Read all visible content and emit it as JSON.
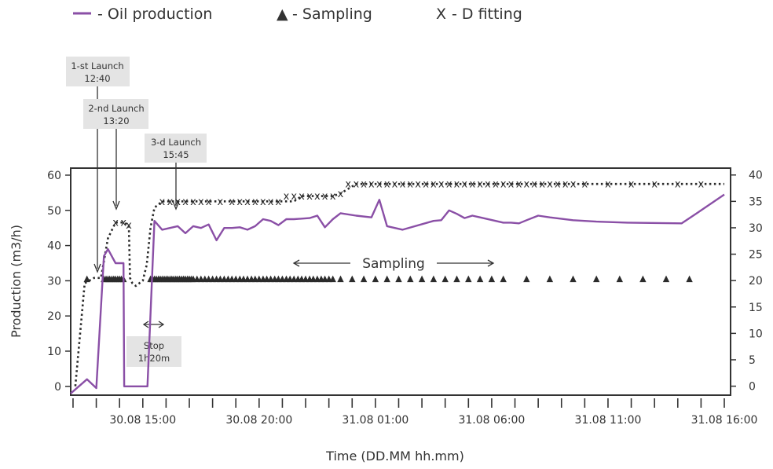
{
  "chart_data": {
    "type": "line",
    "legend": [
      {
        "symbol": "line",
        "label": "- Oil production",
        "color": "#8a4fa6"
      },
      {
        "symbol": "▲",
        "label": "- Sampling",
        "color": "#2b2b2b"
      },
      {
        "symbol": "X",
        "label": "- D fitting",
        "color": "#2b2b2b"
      }
    ],
    "xlabel": "Time (DD.MM hh.mm)",
    "ylabel": "Production (m3/h)",
    "x_tick_labels": [
      {
        "label": "30.08 15:00",
        "x": 15
      },
      {
        "label": "30.08 20:00",
        "x": 20
      },
      {
        "label": "31.08 01:00",
        "x": 25
      },
      {
        "label": "31.08 06:00",
        "x": 30
      },
      {
        "label": "31.08 11:00",
        "x": 35
      },
      {
        "label": "31.08 16:00",
        "x": 40
      }
    ],
    "xlim": [
      11.9,
      40
    ],
    "ylim": [
      -2.5,
      62
    ],
    "y_ticks": [
      0,
      10,
      20,
      30,
      40,
      50,
      60
    ],
    "y2lim": [
      -1.7,
      41.3
    ],
    "y2_ticks": [
      0,
      5,
      10,
      15,
      20,
      25,
      30,
      35,
      40
    ],
    "series": [
      {
        "name": "- Oil production",
        "axis": "left",
        "color": "#8a4fa6",
        "x": [
          11.9,
          12.6,
          13.0,
          13.33,
          13.5,
          13.83,
          14.17,
          14.2,
          15.2,
          15.5,
          15.83,
          16.5,
          16.83,
          17.17,
          17.5,
          17.83,
          18.17,
          18.5,
          18.83,
          19.17,
          19.5,
          19.83,
          20.17,
          20.5,
          20.83,
          21.17,
          21.5,
          22.17,
          22.5,
          22.83,
          23.17,
          23.5,
          24.17,
          24.83,
          25.17,
          25.5,
          26.17,
          27.5,
          27.83,
          28.17,
          28.5,
          28.83,
          29.17,
          29.5,
          30.17,
          30.5,
          30.83,
          31.17,
          31.5,
          32.0,
          32.5,
          33.5,
          34.5,
          35.83,
          38.17,
          39.0,
          40.0
        ],
        "y": [
          -2,
          2,
          -0.5,
          37,
          39,
          35,
          35,
          0,
          0,
          47,
          44.5,
          45.5,
          43.5,
          45.5,
          45,
          46,
          41.5,
          45,
          45,
          45.2,
          44.5,
          45.5,
          47.5,
          47,
          45.8,
          47.5,
          47.5,
          47.8,
          48.5,
          45.2,
          47.5,
          49.2,
          48.5,
          48,
          53,
          45.5,
          44.5,
          47,
          47.2,
          50,
          49,
          47.8,
          48.5,
          48,
          47,
          46.5,
          46.5,
          46.3,
          47.2,
          48.5,
          48,
          47.2,
          46.8,
          46.5,
          46.3,
          50,
          54.5
        ]
      },
      {
        "name": "- D fitting",
        "axis": "right",
        "color": "#2b2b2b",
        "style": "dotted",
        "x": [
          12.1,
          12.5,
          12.9,
          13.2,
          13.5,
          13.83,
          14.17,
          14.4,
          14.45,
          14.55,
          14.7,
          15.0,
          15.17,
          15.33,
          15.5,
          15.83,
          16.17,
          16.5,
          17.17,
          17.5,
          17.83,
          18.17,
          18.5,
          18.83,
          19.17,
          19.5,
          19.83,
          20.17,
          20.83,
          21.17,
          21.5,
          21.83,
          22.17,
          22.5,
          22.83,
          23.17,
          23.5,
          24.17,
          24.83,
          25.17,
          25.5,
          26.17,
          26.5,
          26.83,
          27.17,
          27.5,
          27.83,
          28.17,
          28.5,
          28.83,
          29.17,
          29.5,
          29.83,
          30.17,
          30.5,
          30.83,
          31.17,
          31.5,
          31.83,
          32.17,
          32.5,
          32.83,
          33.17,
          33.5,
          33.83,
          34.17,
          34.5,
          34.83,
          35.17,
          35.5,
          35.83,
          36.17,
          36.5,
          36.83,
          37.17,
          37.5,
          37.83,
          38.17,
          38.5,
          38.83,
          39.17,
          39.5,
          39.83,
          40.0
        ],
        "y": [
          0,
          19.5,
          20.5,
          20.5,
          28,
          31,
          31,
          30.5,
          20.5,
          19.5,
          19,
          20,
          23,
          30,
          33.8,
          35,
          35,
          35,
          35,
          35,
          35,
          35,
          35,
          35,
          35,
          35,
          35,
          35,
          35,
          35,
          35,
          36,
          36,
          36,
          36,
          36,
          36.5,
          38.3,
          38.3,
          38.3,
          38.3,
          38.3,
          38.3,
          38.3,
          38.3,
          38.3,
          38.3,
          38.3,
          38.3,
          38.3,
          38.3,
          38.3,
          38.3,
          38.3,
          38.3,
          38.3,
          38.3,
          38.3,
          38.3,
          38.3,
          38.3,
          38.3,
          38.3,
          38.3,
          38.3,
          38.3,
          38.3,
          38.3,
          38.3,
          38.3,
          38.3,
          38.3,
          38.3,
          38.3,
          38.3,
          38.3,
          38.3,
          38.3,
          38.3,
          38.3,
          38.3,
          38.3,
          38.3,
          38.3
        ],
        "marker_x": [
          13.83,
          14.17,
          14.4,
          15.83,
          16.17,
          16.5,
          16.83,
          17.17,
          17.5,
          17.83,
          18.33,
          18.83,
          19.17,
          19.5,
          19.83,
          20.17,
          20.5,
          20.83,
          21.17,
          21.5,
          21.83,
          22.17,
          22.5,
          22.83,
          23.17,
          23.5,
          23.83,
          24.17,
          24.5,
          24.83,
          25.17,
          25.5,
          25.83,
          26.17,
          26.5,
          26.83,
          27.17,
          27.5,
          27.83,
          28.17,
          28.5,
          28.83,
          29.17,
          29.5,
          29.83,
          30.17,
          30.5,
          30.83,
          31.17,
          31.5,
          31.83,
          32.17,
          32.5,
          32.83,
          33.17,
          33.5,
          34.0,
          35.0,
          36.0,
          37.0,
          38.0,
          39.0
        ],
        "marker_y": [
          31,
          31,
          30.5,
          35,
          35,
          35,
          35,
          35,
          35,
          35,
          35,
          35,
          35,
          35,
          35,
          35,
          35,
          35,
          36,
          36,
          36,
          36,
          36,
          36,
          36,
          36.5,
          38.3,
          38.3,
          38.3,
          38.3,
          38.3,
          38.3,
          38.3,
          38.3,
          38.3,
          38.3,
          38.3,
          38.3,
          38.3,
          38.3,
          38.3,
          38.3,
          38.3,
          38.3,
          38.3,
          38.3,
          38.3,
          38.3,
          38.3,
          38.3,
          38.3,
          38.3,
          38.3,
          38.3,
          38.3,
          38.3,
          38.3,
          38.3,
          38.3,
          38.3,
          38.3,
          38.3
        ]
      },
      {
        "name": "- Sampling",
        "axis": "left",
        "color": "#2b2b2b",
        "marker": "triangle",
        "y_level": 30.5,
        "x": [
          12.6,
          13.33,
          13.42,
          13.5,
          13.58,
          13.67,
          13.75,
          13.83,
          13.92,
          14.0,
          14.08,
          14.17,
          15.33,
          15.42,
          15.5,
          15.58,
          15.67,
          15.75,
          15.83,
          15.92,
          16.0,
          16.08,
          16.17,
          16.25,
          16.33,
          16.42,
          16.5,
          16.58,
          16.67,
          16.75,
          16.83,
          16.92,
          17.0,
          17.08,
          17.17,
          17.33,
          17.5,
          17.67,
          17.83,
          18.0,
          18.17,
          18.33,
          18.5,
          18.67,
          18.83,
          19.0,
          19.17,
          19.33,
          19.5,
          19.67,
          19.83,
          20.0,
          20.17,
          20.33,
          20.5,
          20.67,
          20.83,
          21.0,
          21.17,
          21.33,
          21.5,
          21.67,
          21.83,
          22.0,
          22.17,
          22.33,
          22.5,
          22.67,
          22.83,
          23.0,
          23.17,
          23.5,
          24.0,
          24.5,
          25.0,
          25.5,
          26.0,
          26.5,
          27.0,
          27.5,
          28.0,
          28.5,
          29.0,
          29.5,
          30.0,
          30.5,
          31.5,
          32.5,
          33.5,
          34.5,
          35.5,
          36.5,
          37.5,
          38.5
        ]
      }
    ],
    "annotations": [
      {
        "lines": [
          "1-st Launch",
          "12:40"
        ],
        "x": 12.67
      },
      {
        "lines": [
          "2-nd Launch",
          "13:20"
        ],
        "x": 13.33
      },
      {
        "lines": [
          "3-d Launch",
          "15:45"
        ],
        "x": 15.75
      },
      {
        "lines": [
          "Stop",
          "1h20m"
        ],
        "x": 14.87
      }
    ],
    "span_label": "Sampling"
  }
}
